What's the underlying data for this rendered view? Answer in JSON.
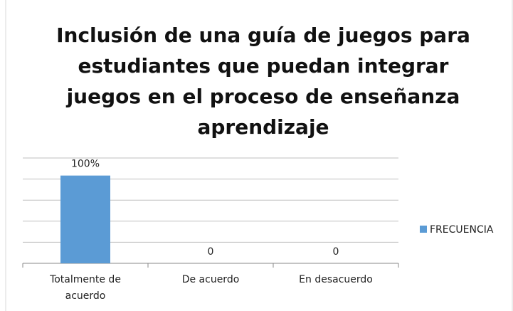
{
  "chart_data": {
    "type": "bar",
    "title": "Inclusión de una guía de juegos para estudiantes que puedan integrar juegos en el proceso de enseñanza aprendizaje",
    "categories": [
      "Totalmente de acuerdo",
      "De acuerdo",
      "En desacuerdo"
    ],
    "series": [
      {
        "name": "FRECUENCIA",
        "color": "#5b9bd5",
        "values": [
          100,
          0,
          0
        ],
        "value_labels": [
          "100%",
          "0",
          "0"
        ]
      }
    ],
    "ylim": [
      0,
      120
    ],
    "yticks": [
      0,
      24,
      48,
      72,
      96,
      120
    ],
    "grid": true,
    "legend": "right"
  }
}
